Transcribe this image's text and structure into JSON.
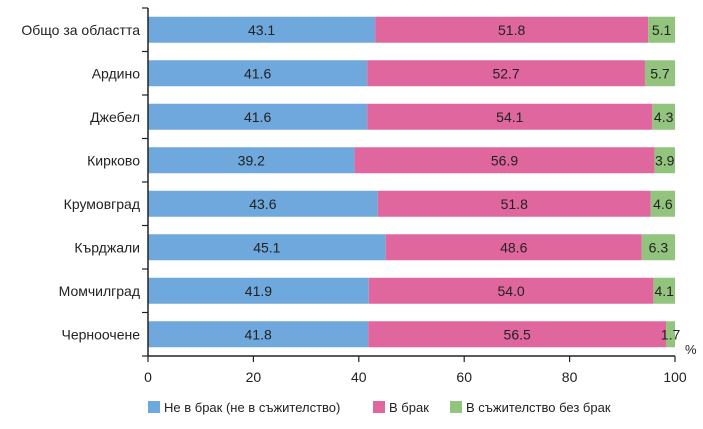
{
  "chart_data": {
    "type": "bar",
    "orientation": "horizontal",
    "stacked": true,
    "categories": [
      "Общо за областта",
      "Ардино",
      "Джебел",
      "Кирково",
      "Крумовград",
      "Кърджали",
      "Момчилград",
      "Черноочене"
    ],
    "series": [
      {
        "name": "Не в брак (не в съжителство)",
        "color": "#6fa8dc",
        "values": [
          43.1,
          41.6,
          41.6,
          39.2,
          43.6,
          45.1,
          41.9,
          41.8
        ]
      },
      {
        "name": "В брак",
        "color": "#e0669e",
        "values": [
          51.8,
          52.7,
          54.1,
          56.9,
          51.8,
          48.6,
          54.0,
          56.5
        ]
      },
      {
        "name": "В съжителство без брак",
        "color": "#93c47d",
        "values": [
          5.1,
          5.7,
          4.3,
          3.9,
          4.6,
          6.3,
          4.1,
          1.7
        ]
      }
    ],
    "value_labels": [
      [
        "43.1",
        "51.8",
        "5.1"
      ],
      [
        "41.6",
        "52.7",
        "5.7"
      ],
      [
        "41.6",
        "54.1",
        "4.3"
      ],
      [
        "39.2",
        "56.9",
        "3.9"
      ],
      [
        "43.6",
        "51.8",
        "4.6"
      ],
      [
        "45.1",
        "48.6",
        "6.3"
      ],
      [
        "41.9",
        "54.0",
        "4.1"
      ],
      [
        "41.8",
        "56.5",
        "1.7"
      ]
    ],
    "x_ticks": [
      0,
      20,
      40,
      60,
      80,
      100
    ],
    "xlim": [
      0,
      100
    ],
    "unit": "%",
    "legend_position": "bottom",
    "grid": false
  }
}
